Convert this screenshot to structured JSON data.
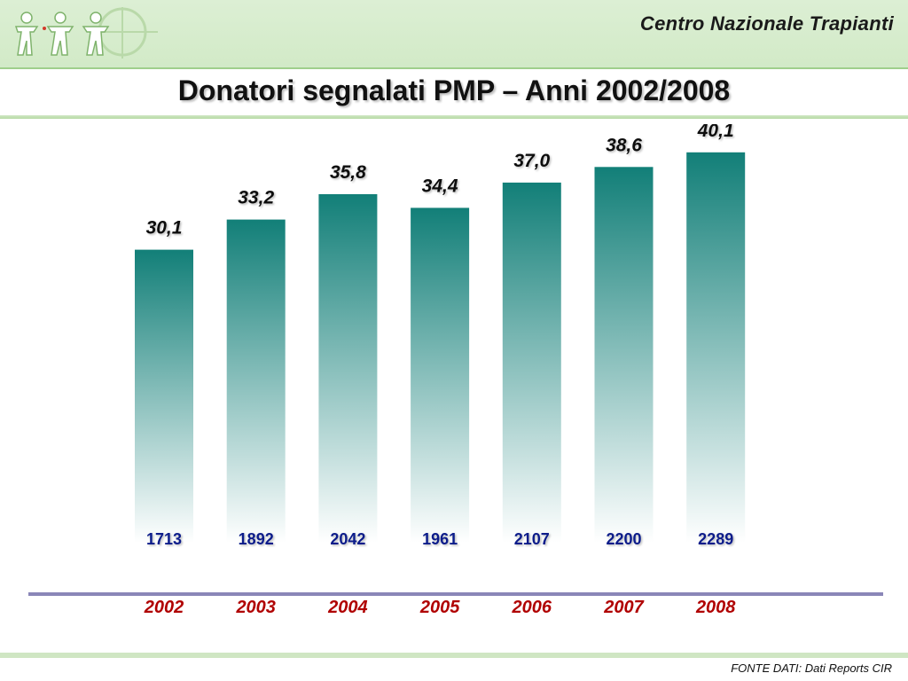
{
  "header": {
    "org_name": "Centro Nazionale Trapianti"
  },
  "page": {
    "title": "Donatori segnalati PMP – Anni 2002/2008"
  },
  "footer": {
    "source": "FONTE DATI: Dati Reports CIR"
  },
  "colors": {
    "bar_top": "#127f78",
    "bar_bottom": "#ffffff",
    "value_label": "#111111",
    "count_label": "#0c1e8a",
    "year_label": "#b00000",
    "axis_line": "#8a86b8"
  },
  "chart_data": {
    "type": "bar",
    "title": "Donatori segnalati PMP – Anni 2002/2008",
    "xlabel": "",
    "ylabel": "",
    "categories": [
      "2002",
      "2003",
      "2004",
      "2005",
      "2006",
      "2007",
      "2008"
    ],
    "values": [
      30.1,
      33.2,
      35.8,
      34.4,
      37.0,
      38.6,
      40.1
    ],
    "value_labels": [
      "30,1",
      "33,2",
      "35,8",
      "34,4",
      "37,0",
      "38,6",
      "40,1"
    ],
    "counts": [
      "1713",
      "1892",
      "2042",
      "1961",
      "2107",
      "2200",
      "2289"
    ],
    "ylim": [
      0,
      43
    ],
    "grid": false,
    "legend": "none"
  }
}
